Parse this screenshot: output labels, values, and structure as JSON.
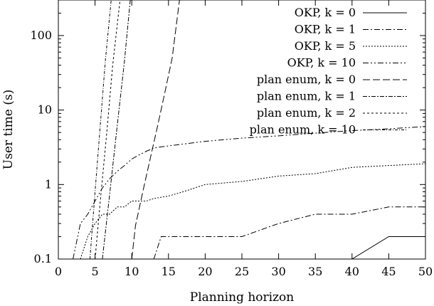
{
  "chart_data": {
    "type": "line",
    "xlabel": "Planning horizon",
    "ylabel": "User time (s)",
    "xlim": [
      0,
      50
    ],
    "ylim": [
      0.1,
      300
    ],
    "yscale": "log",
    "grid": false,
    "legend_position": "top-right",
    "x_ticks": [
      0,
      5,
      10,
      15,
      20,
      25,
      30,
      35,
      40,
      45,
      50
    ],
    "x_tick_labels": [
      "0",
      "5",
      "10",
      "15",
      "20",
      "25",
      "30",
      "35",
      "40",
      "45",
      "50"
    ],
    "y_ticks": [
      0.1,
      1,
      10,
      100
    ],
    "y_tick_labels": [
      "0.1",
      "1",
      "10",
      "100"
    ],
    "series": [
      {
        "name": "OKP, k = 0",
        "dash": "",
        "x": [
          40,
          45,
          50
        ],
        "y": [
          0.1,
          0.2,
          0.2
        ]
      },
      {
        "name": "OKP, k = 1",
        "dash": "8,3,2,3",
        "x": [
          13,
          14,
          20,
          25,
          30,
          35,
          40,
          45,
          50
        ],
        "y": [
          0.1,
          0.2,
          0.2,
          0.2,
          0.3,
          0.4,
          0.4,
          0.5,
          0.5
        ]
      },
      {
        "name": "OKP, k = 5",
        "dash": "2,2",
        "x": [
          3,
          4,
          5,
          6,
          7,
          8,
          9,
          10,
          12,
          13,
          15,
          17,
          20,
          25,
          30,
          35,
          40,
          45,
          50
        ],
        "y": [
          0.1,
          0.2,
          0.3,
          0.4,
          0.4,
          0.5,
          0.5,
          0.6,
          0.6,
          0.65,
          0.7,
          0.8,
          1.0,
          1.1,
          1.3,
          1.4,
          1.7,
          1.8,
          1.9
        ]
      },
      {
        "name": "OKP, k = 10",
        "dash": "8,3,2,3,2,3",
        "x": [
          2,
          3,
          4,
          5,
          6,
          7,
          8,
          9,
          10,
          11,
          12,
          13,
          14,
          15,
          17,
          20,
          25,
          30,
          35,
          40,
          45,
          50
        ],
        "y": [
          0.1,
          0.3,
          0.4,
          0.6,
          0.9,
          1.2,
          1.5,
          1.8,
          2.2,
          2.5,
          2.8,
          3.1,
          3.2,
          3.3,
          3.5,
          3.8,
          4.2,
          4.5,
          4.9,
          5.3,
          5.6,
          6.0
        ]
      },
      {
        "name": "plan enum, k = 0",
        "dash": "10,4",
        "x": [
          10,
          10.5,
          11.5,
          12.5,
          13.5,
          14.5,
          15.5,
          16.5
        ],
        "y": [
          0.1,
          0.28,
          0.8,
          2.2,
          6,
          17,
          50,
          300
        ]
      },
      {
        "name": "plan enum, k = 1",
        "dash": "6,2,2,2",
        "x": [
          6,
          7,
          8,
          9,
          9.8
        ],
        "y": [
          0.1,
          0.75,
          6,
          45,
          300
        ]
      },
      {
        "name": "plan enum, k = 2",
        "dash": "3,3",
        "x": [
          5,
          5.8,
          6.6,
          7.4,
          8.4
        ],
        "y": [
          0.1,
          0.75,
          5,
          40,
          300
        ]
      },
      {
        "name": "plan enum, k = 10",
        "dash": "4,2,1,2",
        "x": [
          4.3,
          5,
          5.7,
          6.4,
          7.2
        ],
        "y": [
          0.1,
          0.8,
          6,
          45,
          300
        ]
      }
    ]
  }
}
